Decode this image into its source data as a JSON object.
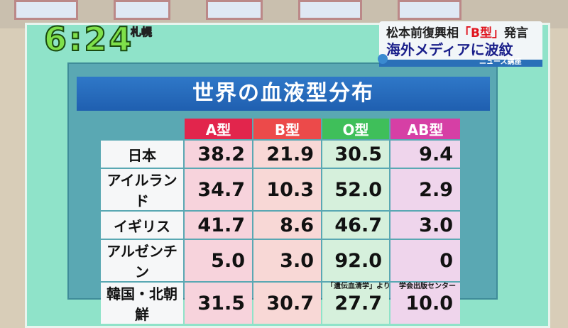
{
  "clock": {
    "time": "6:24",
    "city": "札幌"
  },
  "telop": {
    "line1_a": "松本前復興相",
    "line1_b": "「B型」",
    "line1_c": "発言",
    "line2": "海外メディアに波紋",
    "logo": "ニュース講座"
  },
  "board": {
    "title": "世界の血液型分布",
    "columns": [
      "A型",
      "B型",
      "O型",
      "AB型"
    ],
    "rows": [
      {
        "country": "日本",
        "values": [
          "38.2",
          "21.9",
          "30.5",
          "9.4"
        ]
      },
      {
        "country": "アイルランド",
        "values": [
          "34.7",
          "10.3",
          "52.0",
          "2.9"
        ]
      },
      {
        "country": "イギリス",
        "values": [
          "41.7",
          "8.6",
          "46.7",
          "3.0"
        ]
      },
      {
        "country": "アルゼンチン",
        "values": [
          "5.0",
          "3.0",
          "92.0",
          "0"
        ]
      },
      {
        "country": "韓国・北朝鮮",
        "values": [
          "31.5",
          "30.7",
          "27.7",
          "10.0"
        ]
      }
    ],
    "source": "「遺伝血清学」より",
    "publisher": "学会出版センター"
  }
}
